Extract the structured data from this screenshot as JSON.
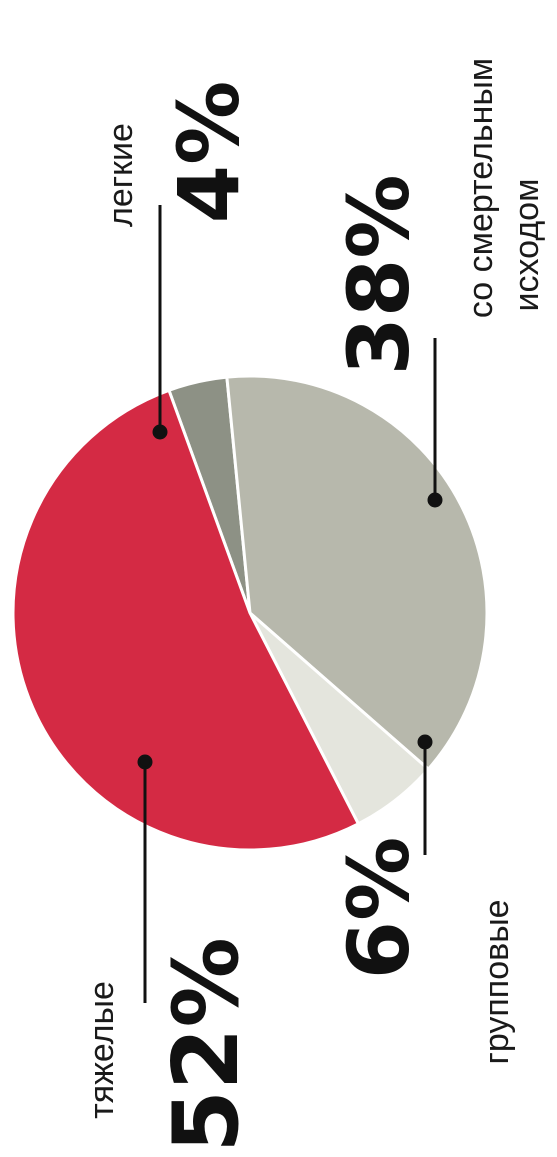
{
  "chart_data": {
    "type": "pie",
    "slices": [
      {
        "label": "легкие",
        "value": 4,
        "display": "4%",
        "color": "#8d9185"
      },
      {
        "label": "со смертельным исходом",
        "label_lines": [
          "со смертельным",
          "исходом"
        ],
        "value": 38,
        "display": "38%",
        "color": "#b7b8ac"
      },
      {
        "label": "групповые",
        "value": 6,
        "display": "6%",
        "color": "#e4e5dd"
      },
      {
        "label": "тяжелые",
        "value": 52,
        "display": "52%",
        "color": "#d42a44"
      }
    ]
  }
}
